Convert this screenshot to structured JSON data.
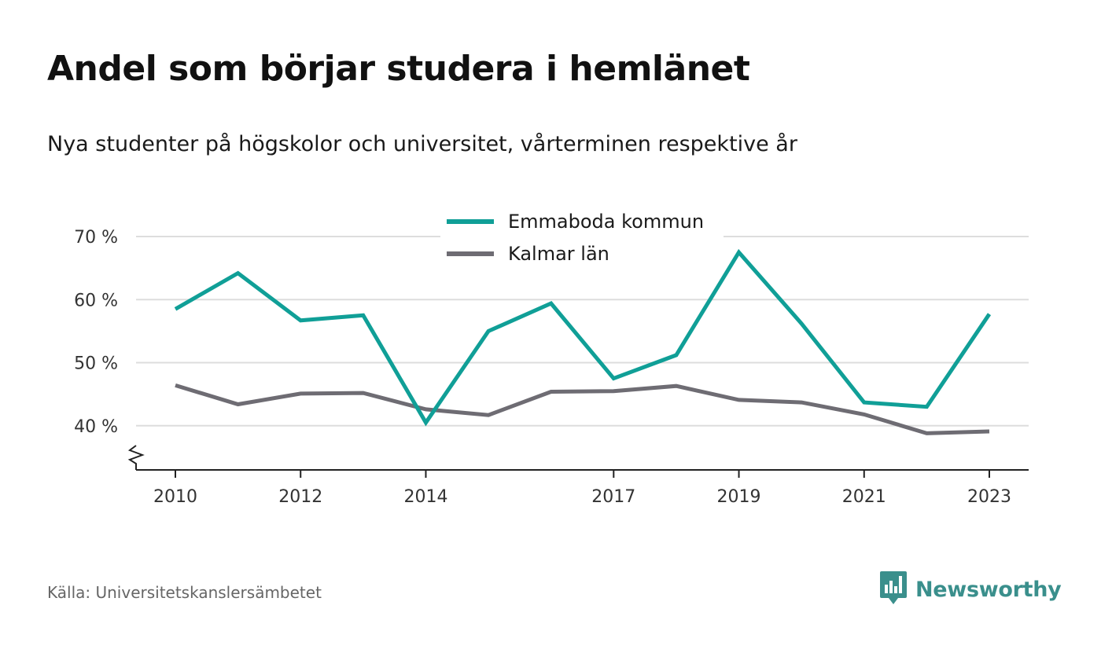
{
  "title": "Andel som börjar studera i hemlänet",
  "subtitle": "Nya studenter på högskolor och universitet, vårterminen respektive år",
  "source": "Källa: Universitetskanslersämbetet",
  "brand": {
    "name": "Newsworthy",
    "icon": "newsworthy-chart-bubble-icon",
    "color": "#3a8f8c"
  },
  "chart_data": {
    "type": "line",
    "x": [
      2010,
      2011,
      2012,
      2013,
      2014,
      2015,
      2016,
      2017,
      2018,
      2019,
      2020,
      2021,
      2022,
      2023
    ],
    "x_tick_labels": [
      "2010",
      "2012",
      "2014",
      "2017",
      "2019",
      "2021",
      "2023"
    ],
    "y_ticks": [
      40,
      50,
      60,
      70
    ],
    "y_tick_labels": [
      "40 %",
      "50 %",
      "60 %",
      "70 %"
    ],
    "ylim": [
      33,
      70
    ],
    "y_axis_break": true,
    "grid": true,
    "legend_position": "top-center",
    "series": [
      {
        "name": "Emmaboda kommun",
        "color": "#109f97",
        "values": [
          58.5,
          64.2,
          56.7,
          57.5,
          40.5,
          55.0,
          59.4,
          47.5,
          51.2,
          67.5,
          56.2,
          43.7,
          43.0,
          57.7
        ]
      },
      {
        "name": "Kalmar län",
        "color": "#6e6c73",
        "values": [
          46.4,
          43.4,
          45.1,
          45.2,
          42.6,
          41.7,
          45.4,
          45.5,
          46.3,
          44.1,
          43.7,
          41.8,
          38.8,
          39.1
        ]
      }
    ]
  }
}
